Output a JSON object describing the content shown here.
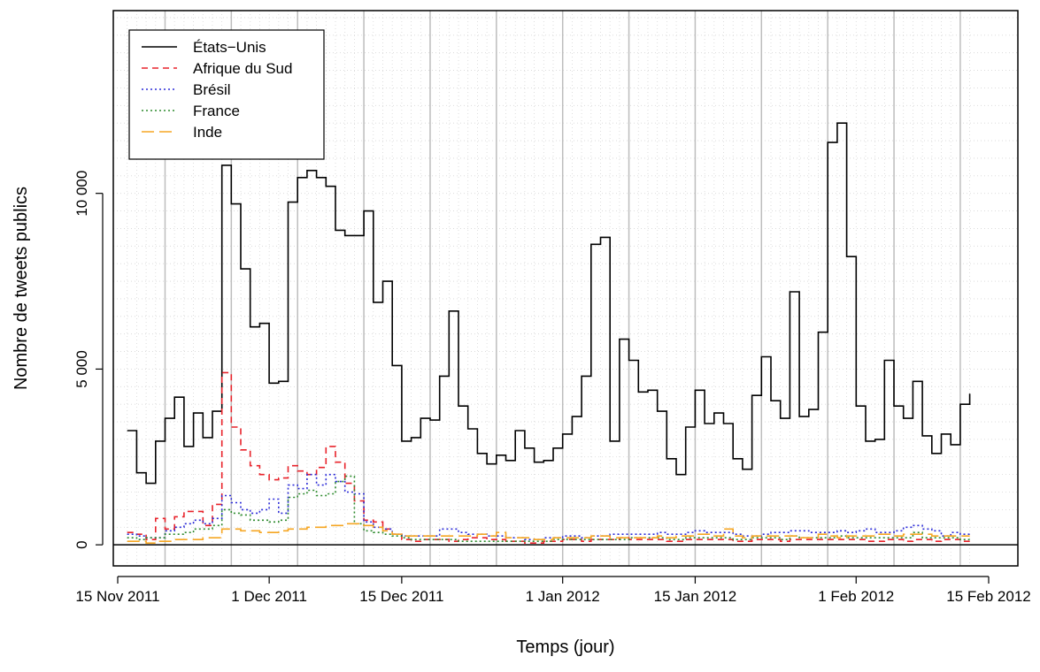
{
  "chart_data": {
    "type": "line",
    "title": "",
    "xlabel": "Temps (jour)",
    "ylabel": "Nombre de tweets publics",
    "step": true,
    "x_start": "2011-11-16",
    "x_end": "2012-02-15",
    "xlim": [
      "2011-11-15",
      "2012-02-15"
    ],
    "ylim": [
      -600,
      15200
    ],
    "grid": true,
    "legend_position": "top-left",
    "xticks": [
      {
        "date": "2011-11-15",
        "label": "15 Nov 2011"
      },
      {
        "date": "2011-12-01",
        "label": "1 Dec 2011"
      },
      {
        "date": "2011-12-15",
        "label": "15 Dec 2011"
      },
      {
        "date": "2012-01-01",
        "label": "1 Jan 2012"
      },
      {
        "date": "2012-01-15",
        "label": "15 Jan 2012"
      },
      {
        "date": "2012-02-01",
        "label": "1 Feb 2012"
      },
      {
        "date": "2012-02-15",
        "label": "15 Feb 2012"
      }
    ],
    "yticks": [
      {
        "value": 0,
        "label": "0"
      },
      {
        "value": 5000,
        "label": "5 000"
      },
      {
        "value": 10000,
        "label": "10 000"
      }
    ],
    "series": [
      {
        "name": "États−Unis",
        "color": "#000000",
        "dash": "solid",
        "values": [
          3250,
          2050,
          1750,
          2950,
          3600,
          4200,
          2800,
          3750,
          3050,
          3800,
          10800,
          9700,
          7850,
          6200,
          6300,
          4600,
          4650,
          9750,
          10450,
          10650,
          10450,
          10200,
          8950,
          8800,
          8800,
          9500,
          6900,
          7500,
          5100,
          2950,
          3050,
          3600,
          3550,
          4800,
          6650,
          3950,
          3300,
          2600,
          2300,
          2550,
          2400,
          3250,
          2750,
          2350,
          2400,
          2750,
          3150,
          3650,
          4800,
          8550,
          8750,
          2950,
          5850,
          5250,
          4350,
          4400,
          3800,
          2450,
          2000,
          3350,
          4400,
          3450,
          3750,
          3450,
          2450,
          2150,
          4250,
          5350,
          4100,
          3600,
          7200,
          3650,
          3850,
          6050,
          11450,
          12000,
          8200,
          3950,
          2950,
          3000,
          5250,
          3950,
          3600,
          4650,
          3100,
          2600,
          3150,
          2850,
          4000,
          4300
        ]
      },
      {
        "name": "Afrique du Sud",
        "color": "#e8232b",
        "dash": "dashed",
        "values": [
          350,
          300,
          150,
          750,
          450,
          800,
          950,
          950,
          550,
          1150,
          4900,
          3350,
          2700,
          2250,
          2000,
          1850,
          1900,
          2250,
          2100,
          2000,
          2200,
          2800,
          2350,
          1750,
          1250,
          700,
          650,
          450,
          300,
          150,
          100,
          150,
          150,
          150,
          100,
          150,
          200,
          200,
          150,
          150,
          100,
          100,
          50,
          50,
          100,
          100,
          150,
          150,
          100,
          150,
          150,
          150,
          200,
          150,
          150,
          150,
          150,
          100,
          100,
          150,
          150,
          150,
          150,
          150,
          100,
          100,
          150,
          150,
          150,
          100,
          150,
          150,
          150,
          150,
          150,
          150,
          150,
          150,
          100,
          100,
          150,
          150,
          100,
          150,
          150,
          100,
          150,
          150,
          100,
          100
        ]
      },
      {
        "name": "Brésil",
        "color": "#2b2bd8",
        "dash": "dotted",
        "values": [
          300,
          250,
          200,
          200,
          400,
          500,
          600,
          700,
          600,
          750,
          1400,
          1200,
          1000,
          900,
          1000,
          1300,
          900,
          1700,
          1600,
          2000,
          1700,
          2000,
          1800,
          1500,
          1450,
          650,
          500,
          450,
          300,
          250,
          250,
          250,
          250,
          450,
          450,
          350,
          300,
          300,
          250,
          250,
          200,
          200,
          150,
          150,
          200,
          200,
          250,
          250,
          200,
          250,
          250,
          300,
          300,
          300,
          300,
          300,
          350,
          300,
          300,
          350,
          400,
          350,
          350,
          350,
          300,
          250,
          250,
          300,
          350,
          350,
          400,
          400,
          350,
          350,
          350,
          400,
          350,
          400,
          450,
          350,
          350,
          400,
          500,
          550,
          450,
          400,
          250,
          350,
          300,
          300
        ]
      },
      {
        "name": "France",
        "color": "#2e8b2e",
        "dash": "dotted",
        "values": [
          200,
          150,
          200,
          200,
          300,
          300,
          350,
          450,
          450,
          550,
          1000,
          900,
          850,
          700,
          700,
          650,
          700,
          1350,
          1450,
          1550,
          1400,
          1450,
          1800,
          1950,
          600,
          400,
          350,
          300,
          250,
          200,
          150,
          150,
          150,
          150,
          150,
          100,
          100,
          100,
          100,
          100,
          100,
          100,
          100,
          100,
          100,
          150,
          150,
          150,
          150,
          150,
          150,
          150,
          150,
          200,
          200,
          200,
          200,
          150,
          150,
          200,
          200,
          200,
          200,
          200,
          150,
          150,
          200,
          200,
          200,
          150,
          250,
          200,
          200,
          200,
          200,
          250,
          200,
          200,
          200,
          200,
          200,
          200,
          200,
          350,
          200,
          200,
          200,
          200,
          150,
          150
        ]
      },
      {
        "name": "Inde",
        "color": "#f5a623",
        "dash": "longdash",
        "values": [
          100,
          100,
          50,
          100,
          100,
          150,
          150,
          150,
          200,
          200,
          450,
          450,
          400,
          400,
          350,
          350,
          400,
          450,
          450,
          500,
          500,
          550,
          550,
          600,
          600,
          550,
          500,
          400,
          300,
          250,
          250,
          250,
          250,
          250,
          250,
          250,
          250,
          300,
          250,
          350,
          200,
          200,
          200,
          150,
          150,
          200,
          200,
          200,
          200,
          250,
          250,
          200,
          200,
          200,
          200,
          200,
          250,
          200,
          250,
          250,
          300,
          300,
          250,
          450,
          250,
          200,
          250,
          250,
          250,
          250,
          250,
          200,
          200,
          300,
          250,
          200,
          250,
          250,
          250,
          300,
          300,
          250,
          300,
          300,
          300,
          250,
          250,
          250,
          250,
          250
        ]
      }
    ]
  }
}
